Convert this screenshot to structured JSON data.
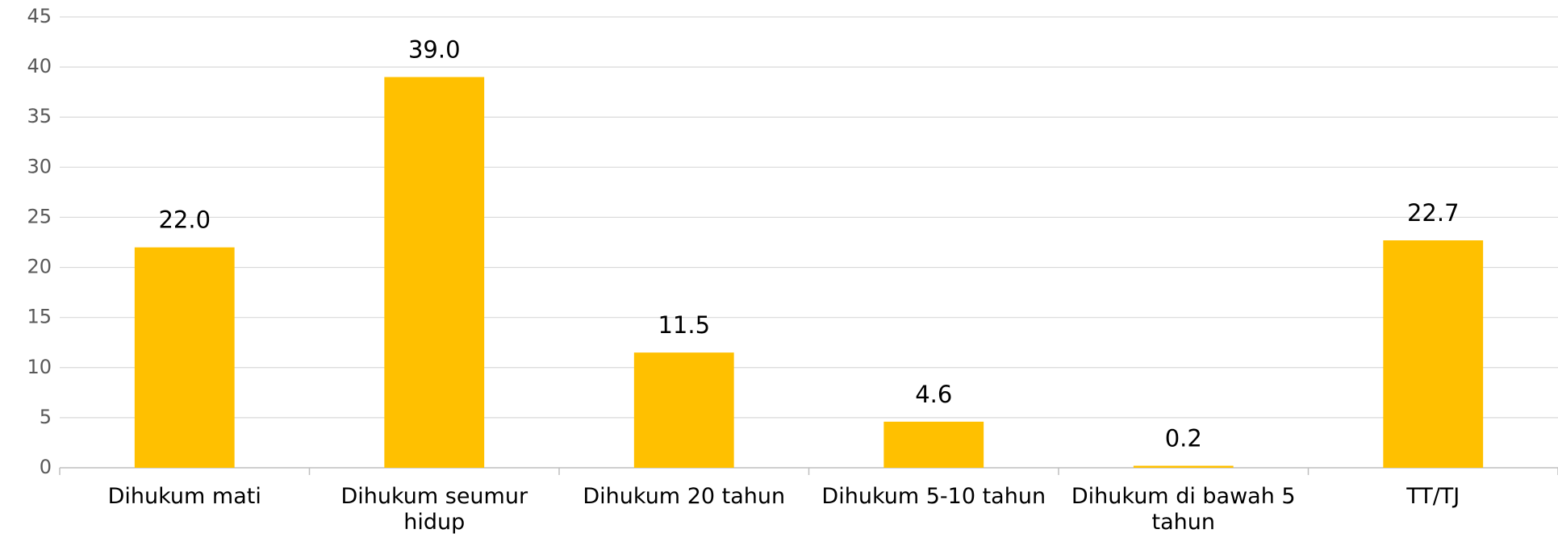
{
  "chart_data": {
    "type": "bar",
    "categories": [
      "Dihukum mati",
      "Dihukum seumur hidup",
      "Dihukum 20 tahun",
      "Dihukum 5-10 tahun",
      "Dihukum di bawah 5 tahun",
      "TT/TJ"
    ],
    "values": [
      22.0,
      39.0,
      11.5,
      4.6,
      0.2,
      22.7
    ],
    "value_labels": [
      "22.0",
      "39.0",
      "11.5",
      "4.6",
      "0.2",
      "22.7"
    ],
    "color": "#ffc000",
    "ylim": [
      0,
      45
    ],
    "yticks": [
      0,
      5,
      10,
      15,
      20,
      25,
      30,
      35,
      40,
      45
    ],
    "grid": true
  }
}
